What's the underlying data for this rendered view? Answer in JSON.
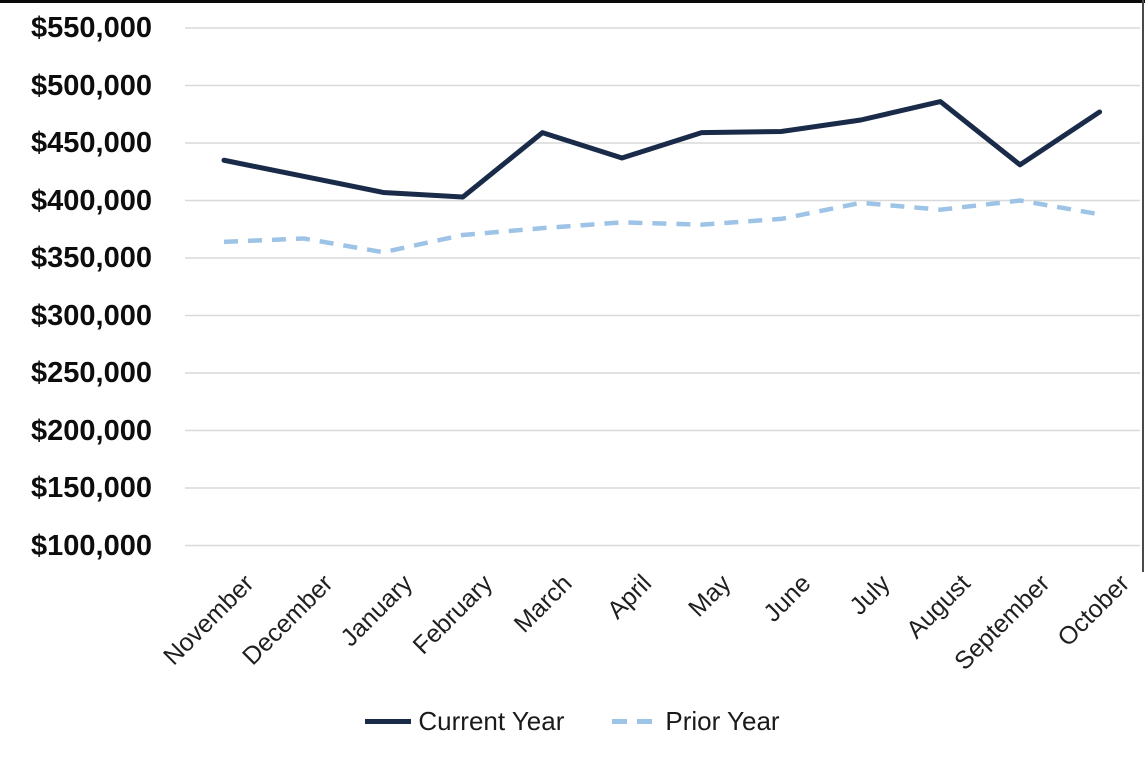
{
  "chart_data": {
    "type": "line",
    "title": "",
    "categories": [
      "November",
      "December",
      "January",
      "February",
      "March",
      "April",
      "May",
      "June",
      "July",
      "August",
      "September",
      "October"
    ],
    "series": [
      {
        "name": "Current Year",
        "style": "solid",
        "color": "#1a2b49",
        "values": [
          435000,
          421000,
          407000,
          403000,
          459000,
          437000,
          459000,
          460000,
          470000,
          486000,
          431000,
          477000
        ]
      },
      {
        "name": "Prior Year",
        "style": "dashed",
        "color": "#9dc3e6",
        "values": [
          364000,
          367000,
          355000,
          370000,
          376000,
          381000,
          379000,
          384000,
          398000,
          392000,
          400000,
          388000
        ]
      }
    ],
    "y_axis": {
      "min": 100000,
      "max": 550000,
      "step": 50000,
      "tick_labels": [
        "$550,000",
        "$500,000",
        "$450,000",
        "$400,000",
        "$350,000",
        "$300,000",
        "$250,000",
        "$200,000",
        "$150,000",
        "$100,000"
      ],
      "format": "$#,##0"
    },
    "x_axis": {
      "label_rotation_deg": -45
    },
    "grid": true,
    "gridline_color": "#d9d9d9",
    "legend_position": "bottom"
  }
}
